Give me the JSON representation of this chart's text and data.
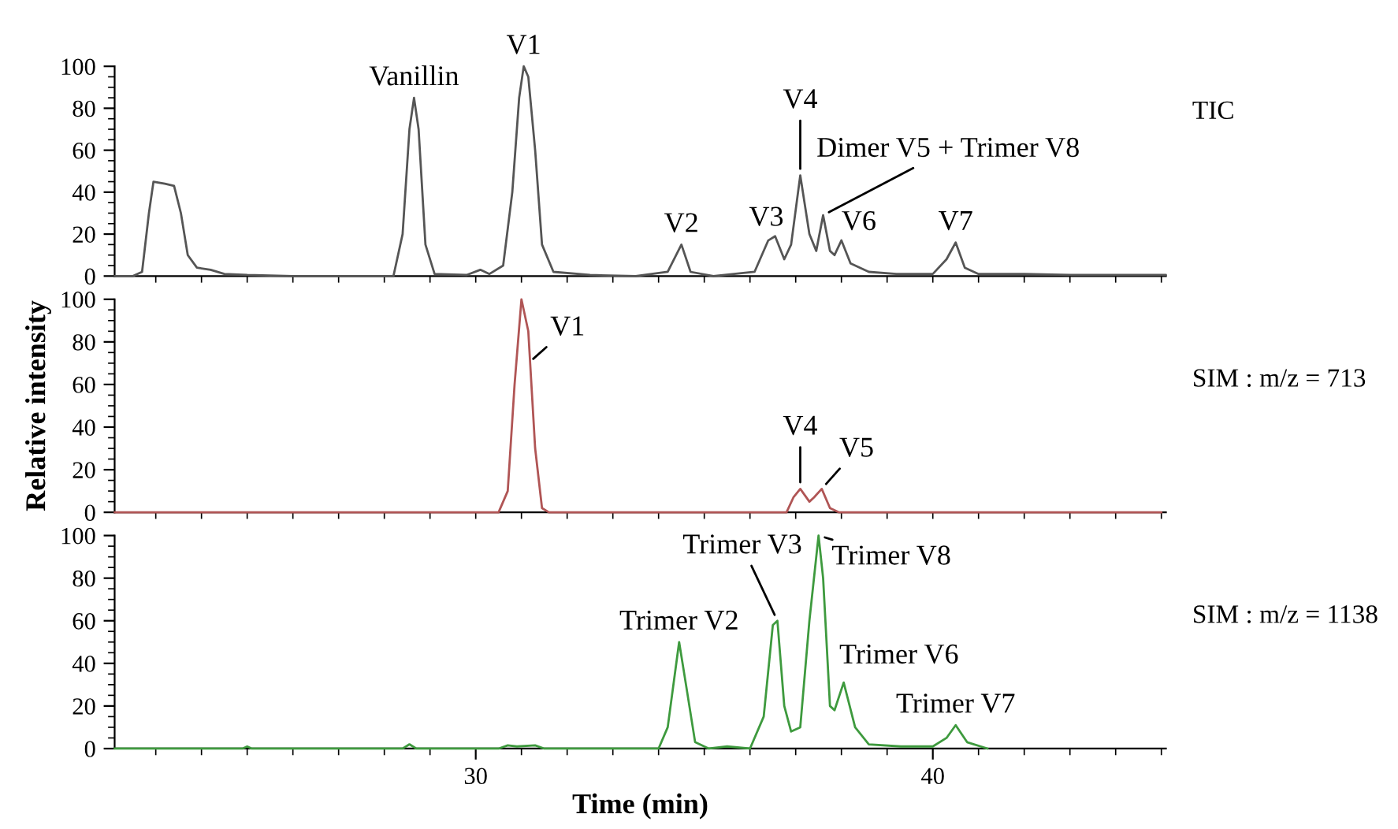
{
  "chart_data": [
    {
      "type": "line",
      "tick_labels": "y",
      "xlim": [
        22.1,
        45.1
      ],
      "ylim": [
        0,
        100
      ],
      "xticks": [
        {
          "value": 23,
          "label": null
        },
        {
          "value": 24,
          "label": null
        },
        {
          "value": 25,
          "label": null
        },
        {
          "value": 26,
          "label": null
        },
        {
          "value": 27,
          "label": null
        },
        {
          "value": 28,
          "label": null
        },
        {
          "value": 29,
          "label": null
        },
        {
          "value": 30,
          "label": null
        },
        {
          "value": 31,
          "label": null
        },
        {
          "value": 32,
          "label": null
        },
        {
          "value": 33,
          "label": null
        },
        {
          "value": 34,
          "label": null
        },
        {
          "value": 35,
          "label": null
        },
        {
          "value": 36,
          "label": null
        },
        {
          "value": 37,
          "label": null
        },
        {
          "value": 38,
          "label": null
        },
        {
          "value": 39,
          "label": null
        },
        {
          "value": 40,
          "label": null
        },
        {
          "value": 41,
          "label": null
        },
        {
          "value": 42,
          "label": null
        },
        {
          "value": 43,
          "label": null
        },
        {
          "value": 44,
          "label": null
        },
        {
          "value": 45,
          "label": null
        }
      ],
      "yticks": [
        0,
        {
          "value": 5,
          "label": null
        },
        {
          "value": 10,
          "label": null
        },
        {
          "value": 15,
          "label": null
        },
        20,
        {
          "value": 25,
          "label": null
        },
        {
          "value": 30,
          "label": null
        },
        {
          "value": 35,
          "label": null
        },
        40,
        {
          "value": 45,
          "label": null
        },
        {
          "value": 50,
          "label": null
        },
        {
          "value": 55,
          "label": null
        },
        60,
        {
          "value": 65,
          "label": null
        },
        {
          "value": 70,
          "label": null
        },
        {
          "value": 75,
          "label": null
        },
        80,
        {
          "value": 85,
          "label": null
        },
        {
          "value": 90,
          "label": null
        },
        {
          "value": 95,
          "label": null
        },
        100
      ],
      "series": [
        {
          "name": "TIC",
          "color": "#555555",
          "x": [
            22.1,
            22.5,
            22.7,
            22.85,
            22.95,
            23.2,
            23.4,
            23.55,
            23.7,
            23.9,
            24.2,
            24.5,
            25,
            26,
            27,
            28.2,
            28.4,
            28.55,
            28.65,
            28.75,
            28.9,
            29.1,
            29.8,
            30.1,
            30.3,
            30.6,
            30.8,
            30.95,
            31.05,
            31.15,
            31.3,
            31.45,
            31.7,
            32.5,
            33.5,
            34.2,
            34.5,
            34.7,
            35.2,
            36.1,
            36.4,
            36.55,
            36.75,
            36.9,
            37.1,
            37.3,
            37.45,
            37.6,
            37.75,
            37.85,
            38.0,
            38.2,
            38.6,
            39.2,
            40.0,
            40.3,
            40.5,
            40.7,
            41.0,
            42,
            43,
            45.1
          ],
          "values": [
            0,
            0,
            2,
            30,
            45,
            44,
            43,
            30,
            10,
            4,
            3,
            1,
            0.5,
            0,
            0,
            0,
            20,
            70,
            85,
            70,
            15,
            1,
            0.5,
            3,
            1,
            5,
            40,
            85,
            100,
            95,
            60,
            15,
            2,
            0.5,
            0,
            2,
            15,
            2,
            0,
            2,
            17,
            19,
            8,
            15,
            48,
            20,
            12,
            29,
            12,
            10,
            17,
            6,
            2,
            1,
            1,
            8,
            16,
            4,
            1,
            1,
            0.5,
            0.5
          ]
        }
      ],
      "annotations": [
        {
          "text": "Vanillin",
          "x": 28.65,
          "y": 85
        },
        {
          "text": "V1",
          "x": 31.05,
          "y": 100
        },
        {
          "text": "V2",
          "x": 34.5,
          "y": 15
        },
        {
          "text": "V3",
          "x": 36.55,
          "y": 19
        },
        {
          "text": "V4",
          "x": 37.1,
          "y": 48
        },
        {
          "text": "Dimer V5 + Trimer V8",
          "x": 37.6,
          "y": 29
        },
        {
          "text": "V6",
          "x": 38.0,
          "y": 17
        },
        {
          "text": "V7",
          "x": 40.5,
          "y": 16
        }
      ]
    },
    {
      "type": "line",
      "tick_labels": "y",
      "xlim": [
        22.1,
        45.1
      ],
      "ylim": [
        0,
        100
      ],
      "ylabel": "Relative intensity",
      "xticks": [
        {
          "value": 23,
          "label": null
        },
        {
          "value": 24,
          "label": null
        },
        {
          "value": 25,
          "label": null
        },
        {
          "value": 26,
          "label": null
        },
        {
          "value": 27,
          "label": null
        },
        {
          "value": 28,
          "label": null
        },
        {
          "value": 29,
          "label": null
        },
        {
          "value": 30,
          "label": null
        },
        {
          "value": 31,
          "label": null
        },
        {
          "value": 32,
          "label": null
        },
        {
          "value": 33,
          "label": null
        },
        {
          "value": 34,
          "label": null
        },
        {
          "value": 35,
          "label": null
        },
        {
          "value": 36,
          "label": null
        },
        {
          "value": 37,
          "label": null
        },
        {
          "value": 38,
          "label": null
        },
        {
          "value": 39,
          "label": null
        },
        {
          "value": 40,
          "label": null
        },
        {
          "value": 41,
          "label": null
        },
        {
          "value": 42,
          "label": null
        },
        {
          "value": 43,
          "label": null
        },
        {
          "value": 44,
          "label": null
        },
        {
          "value": 45,
          "label": null
        }
      ],
      "yticks": [
        0,
        {
          "value": 5,
          "label": null
        },
        {
          "value": 10,
          "label": null
        },
        {
          "value": 15,
          "label": null
        },
        20,
        {
          "value": 25,
          "label": null
        },
        {
          "value": 30,
          "label": null
        },
        {
          "value": 35,
          "label": null
        },
        40,
        {
          "value": 45,
          "label": null
        },
        {
          "value": 50,
          "label": null
        },
        {
          "value": 55,
          "label": null
        },
        60,
        {
          "value": 65,
          "label": null
        },
        {
          "value": 70,
          "label": null
        },
        {
          "value": 75,
          "label": null
        },
        80,
        {
          "value": 85,
          "label": null
        },
        {
          "value": 90,
          "label": null
        },
        {
          "value": 95,
          "label": null
        },
        100
      ],
      "series": [
        {
          "name": "SIM : m/z = 713",
          "color": "#b05555",
          "x": [
            22.1,
            30.5,
            30.7,
            30.85,
            31.0,
            31.15,
            31.3,
            31.45,
            31.6,
            36.8,
            36.95,
            37.1,
            37.3,
            37.4,
            37.57,
            37.75,
            37.95,
            45.0
          ],
          "values": [
            0,
            0,
            10,
            60,
            100,
            85,
            30,
            2,
            0,
            0,
            7,
            11,
            5,
            7,
            11,
            2,
            0,
            0
          ]
        }
      ],
      "annotations": [
        {
          "text": "V1",
          "x": 31.15,
          "y": 70
        },
        {
          "text": "V4",
          "x": 37.1,
          "y": 11
        },
        {
          "text": "V5",
          "x": 37.57,
          "y": 11
        }
      ]
    },
    {
      "type": "line",
      "xlim": [
        22.1,
        45.1
      ],
      "ylim": [
        0,
        100
      ],
      "xlabel": "Time (min)",
      "xticks": [
        {
          "value": 23,
          "label": null
        },
        {
          "value": 24,
          "label": null
        },
        {
          "value": 25,
          "label": null
        },
        {
          "value": 26,
          "label": null
        },
        {
          "value": 27,
          "label": null
        },
        {
          "value": 28,
          "label": null
        },
        {
          "value": 29,
          "label": null
        },
        30,
        {
          "value": 31,
          "label": null
        },
        {
          "value": 32,
          "label": null
        },
        {
          "value": 33,
          "label": null
        },
        {
          "value": 34,
          "label": null
        },
        {
          "value": 35,
          "label": null
        },
        {
          "value": 36,
          "label": null
        },
        {
          "value": 37,
          "label": null
        },
        {
          "value": 38,
          "label": null
        },
        {
          "value": 39,
          "label": null
        },
        40,
        {
          "value": 41,
          "label": null
        },
        {
          "value": 42,
          "label": null
        },
        {
          "value": 43,
          "label": null
        },
        {
          "value": 44,
          "label": null
        },
        {
          "value": 45,
          "label": null
        }
      ],
      "yticks": [
        0,
        {
          "value": 5,
          "label": null
        },
        {
          "value": 10,
          "label": null
        },
        {
          "value": 15,
          "label": null
        },
        20,
        {
          "value": 25,
          "label": null
        },
        {
          "value": 30,
          "label": null
        },
        {
          "value": 35,
          "label": null
        },
        40,
        {
          "value": 45,
          "label": null
        },
        {
          "value": 50,
          "label": null
        },
        {
          "value": 55,
          "label": null
        },
        60,
        {
          "value": 65,
          "label": null
        },
        {
          "value": 70,
          "label": null
        },
        {
          "value": 75,
          "label": null
        },
        80,
        {
          "value": 85,
          "label": null
        },
        {
          "value": 90,
          "label": null
        },
        {
          "value": 95,
          "label": null
        },
        100
      ],
      "series": [
        {
          "name": "SIM : m/z = 1138",
          "color": "#3e9a3e",
          "x": [
            22.1,
            24.9,
            25.0,
            25.1,
            28.4,
            28.55,
            28.7,
            30.5,
            30.7,
            30.9,
            31.3,
            31.5,
            34.0,
            34.2,
            34.45,
            34.6,
            34.8,
            35.1,
            35.5,
            36.0,
            36.3,
            36.5,
            36.6,
            36.75,
            36.9,
            37.1,
            37.3,
            37.5,
            37.6,
            37.75,
            37.85,
            38.05,
            38.3,
            38.6,
            39.3,
            40.0,
            40.3,
            40.5,
            40.75,
            41.2
          ],
          "values": [
            0,
            0,
            1,
            0,
            0,
            2,
            0,
            0,
            1.5,
            1,
            1.5,
            0,
            0,
            10,
            50,
            30,
            3,
            0,
            1,
            0,
            15,
            58,
            60,
            20,
            8,
            10,
            60,
            100,
            80,
            20,
            18,
            31,
            10,
            2,
            1,
            1,
            5,
            11,
            3,
            0
          ]
        }
      ],
      "annotations": [
        {
          "text": "Trimer V2",
          "x": 34.45,
          "y": 50
        },
        {
          "text": "Trimer V3",
          "x": 36.6,
          "y": 60
        },
        {
          "text": "Trimer V8",
          "x": 37.5,
          "y": 100
        },
        {
          "text": "Trimer V6",
          "x": 38.05,
          "y": 31
        },
        {
          "text": "Trimer V7",
          "x": 40.5,
          "y": 11
        }
      ]
    }
  ]
}
